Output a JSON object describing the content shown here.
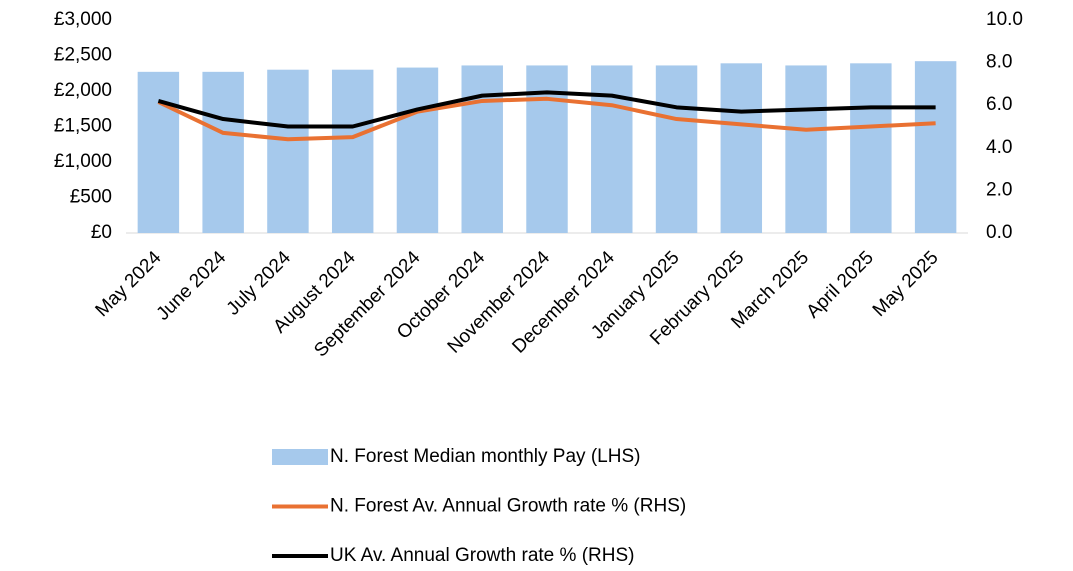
{
  "chart_data": {
    "type": "combo",
    "categories": [
      "May 2024",
      "June 2024",
      "July 2024",
      "August 2024",
      "September 2024",
      "October 2024",
      "November 2024",
      "December 2024",
      "January 2025",
      "February 2025",
      "March 2025",
      "April 2025",
      "May 2025"
    ],
    "series": [
      {
        "name": "N. Forest Median monthly Pay (LHS)",
        "type": "bar",
        "color": "#a6c9ec",
        "values": [
          2270,
          2270,
          2300,
          2300,
          2330,
          2360,
          2360,
          2360,
          2360,
          2390,
          2360,
          2390,
          2420
        ]
      },
      {
        "name": "N. Forest Av. Annual Growth rate % (RHS)",
        "type": "line",
        "axis": "y2",
        "color": "#e97132",
        "values": [
          6.15,
          4.7,
          4.4,
          4.5,
          5.7,
          6.2,
          6.3,
          6.0,
          5.35,
          5.1,
          4.85,
          5.0,
          5.15
        ]
      },
      {
        "name": "UK Av. Annual Growth rate % (RHS)",
        "type": "line",
        "axis": "y2",
        "color": "#000000",
        "values": [
          6.2,
          5.35,
          5.0,
          5.0,
          5.8,
          6.45,
          6.6,
          6.45,
          5.9,
          5.7,
          5.8,
          5.9,
          5.9
        ]
      }
    ],
    "ylim": [
      0,
      3000
    ],
    "yticks": [
      {
        "value": 0,
        "label": "£0"
      },
      {
        "value": 500,
        "label": "£500"
      },
      {
        "value": 1000,
        "label": "£1,000"
      },
      {
        "value": 1500,
        "label": "£1,500"
      },
      {
        "value": 2000,
        "label": "£2,000"
      },
      {
        "value": 2500,
        "label": "£2,500"
      },
      {
        "value": 3000,
        "label": "£3,000"
      }
    ],
    "y2lim": [
      0,
      10
    ],
    "y2ticks": [
      {
        "value": 0,
        "label": "0.0"
      },
      {
        "value": 2,
        "label": "2.0"
      },
      {
        "value": 4,
        "label": "4.0"
      },
      {
        "value": 6,
        "label": "6.0"
      },
      {
        "value": 8,
        "label": "8.0"
      },
      {
        "value": 10,
        "label": "10.0"
      }
    ]
  }
}
